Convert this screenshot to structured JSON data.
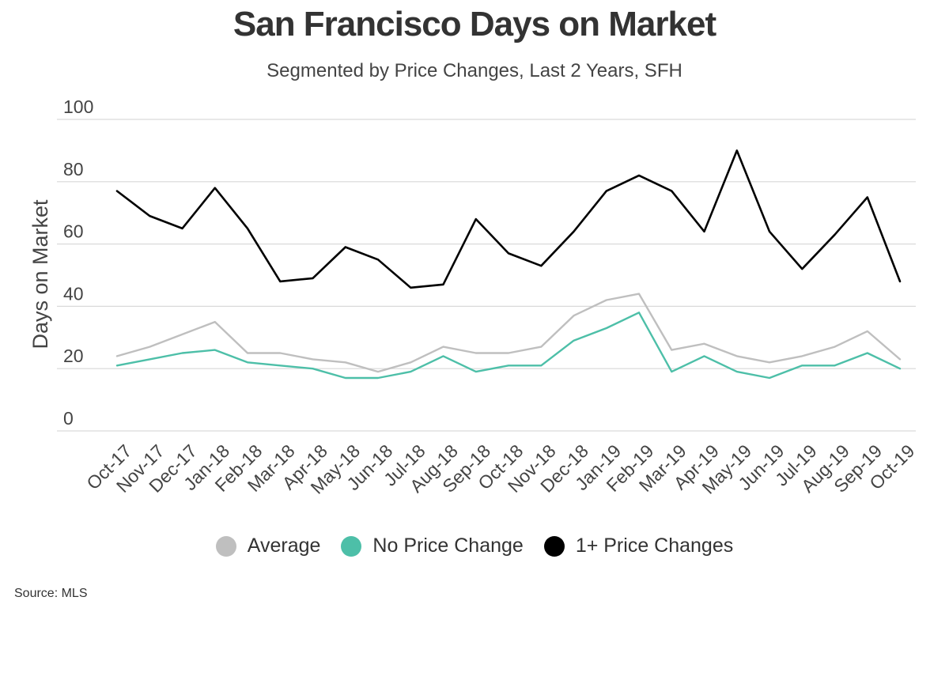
{
  "chart_data": {
    "type": "line",
    "title": "San Francisco Days on Market",
    "subtitle": "Segmented by Price Changes, Last 2 Years, SFH",
    "ylabel": "Days on Market",
    "xlabel": "",
    "ylim": [
      0,
      100
    ],
    "yticks": [
      0,
      20,
      40,
      60,
      80,
      100
    ],
    "grid": true,
    "legend_position": "bottom",
    "categories": [
      "Oct-17",
      "Nov-17",
      "Dec-17",
      "Jan-18",
      "Feb-18",
      "Mar-18",
      "Apr-18",
      "May-18",
      "Jun-18",
      "Jul-18",
      "Aug-18",
      "Sep-18",
      "Oct-18",
      "Nov-18",
      "Dec-18",
      "Jan-19",
      "Feb-19",
      "Mar-19",
      "Apr-19",
      "May-19",
      "Jun-19",
      "Jul-19",
      "Aug-19",
      "Sep-19",
      "Oct-19"
    ],
    "series": [
      {
        "name": "Average",
        "color": "#bfbfbf",
        "values": [
          24,
          27,
          31,
          35,
          25,
          25,
          23,
          22,
          19,
          22,
          27,
          25,
          25,
          27,
          37,
          42,
          44,
          26,
          28,
          24,
          22,
          24,
          27,
          32,
          23
        ]
      },
      {
        "name": "No Price Change",
        "color": "#4dbfa8",
        "values": [
          21,
          23,
          25,
          26,
          22,
          21,
          20,
          17,
          17,
          19,
          24,
          19,
          21,
          21,
          29,
          33,
          38,
          19,
          24,
          19,
          17,
          21,
          21,
          25,
          20
        ]
      },
      {
        "name": "1+ Price Changes",
        "color": "#000000",
        "values": [
          77,
          69,
          65,
          78,
          65,
          48,
          49,
          59,
          55,
          46,
          47,
          68,
          57,
          53,
          64,
          77,
          82,
          77,
          64,
          90,
          64,
          52,
          63,
          75,
          48
        ]
      }
    ],
    "source": "Source:  MLS"
  }
}
